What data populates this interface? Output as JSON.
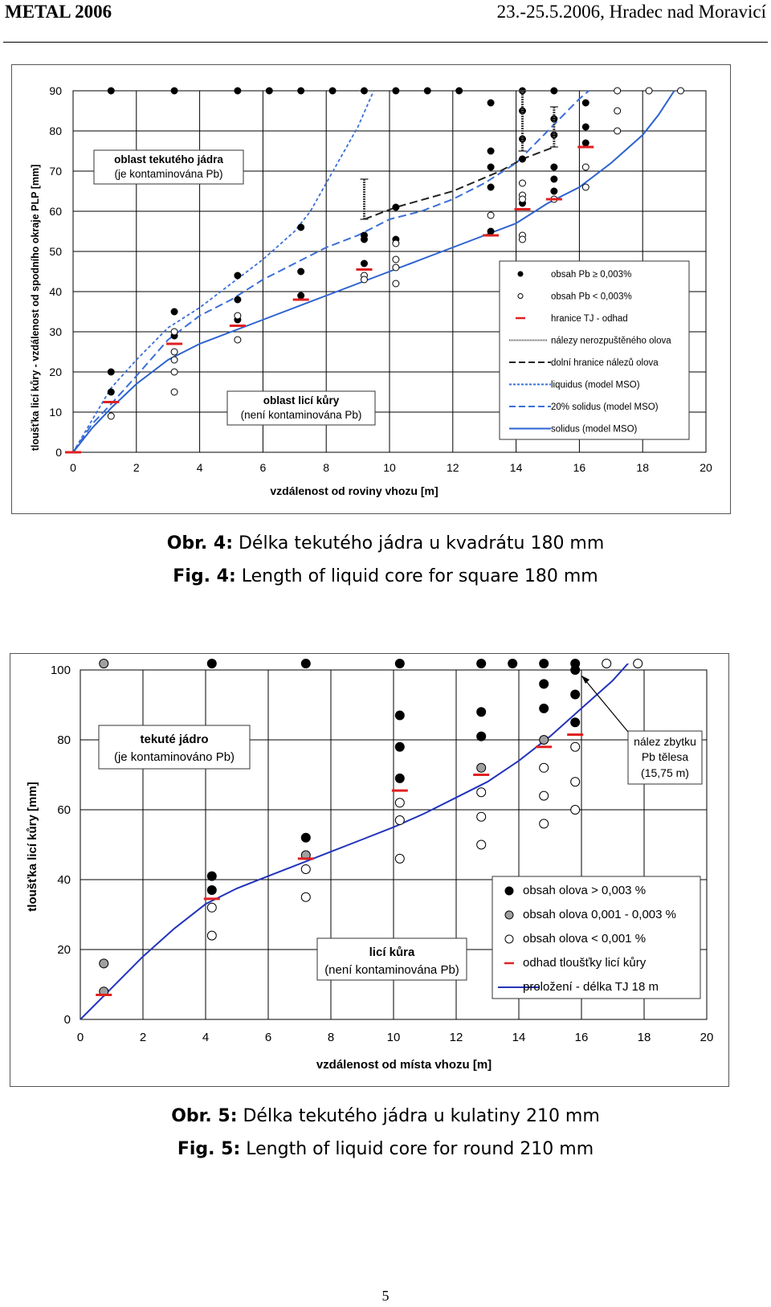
{
  "header": {
    "conference": "METAL 2006",
    "dates_place": "23.-25.5.2006, Hradec nad Moravicí"
  },
  "figure4": {
    "caption_cz_label": "Obr. 4:",
    "caption_cz_text": " Délka tekutého jádra u kvadrátu 180 mm",
    "caption_en_label": "Fig. 4:",
    "caption_en_text": " Length of liquid core for square 180 mm",
    "box_liquid_line1": "oblast tekutého jádra",
    "box_liquid_line2": "(je kontaminována Pb)",
    "box_shell_line1": "oblast licí kůry",
    "box_shell_line2": "(není kontaminována Pb)",
    "chart_data": {
      "type": "scatter",
      "xlabel": "vzdálenost od roviny vhozu [m]",
      "ylabel": "tloušťka licí kůry - vzdálenost od spodního okraje PLP  [mm]",
      "xlim": [
        0,
        20
      ],
      "ylim": [
        0,
        90
      ],
      "x_ticks": [
        "0",
        "2",
        "4",
        "6",
        "8",
        "10",
        "12",
        "14",
        "16",
        "18",
        "20"
      ],
      "y_ticks": [
        "0",
        "10",
        "20",
        "30",
        "40",
        "50",
        "60",
        "70",
        "80",
        "90"
      ],
      "grid": true,
      "legend_position": "right",
      "series": [
        {
          "name": "obsah Pb ≥ 0,003%",
          "color": "#000000",
          "marker": "filled",
          "points": [
            [
              1.2,
              90
            ],
            [
              3.2,
              90
            ],
            [
              5.2,
              90
            ],
            [
              6.2,
              90
            ],
            [
              7.2,
              90
            ],
            [
              8.2,
              90
            ],
            [
              9.2,
              90
            ],
            [
              10.2,
              90
            ],
            [
              11.2,
              90
            ],
            [
              12.2,
              90
            ],
            [
              14.2,
              90
            ],
            [
              15.2,
              90
            ],
            [
              1.2,
              20
            ],
            [
              1.2,
              15
            ],
            [
              3.2,
              35
            ],
            [
              3.2,
              29
            ],
            [
              5.2,
              44
            ],
            [
              5.2,
              38
            ],
            [
              5.2,
              33
            ],
            [
              7.2,
              56
            ],
            [
              7.2,
              45
            ],
            [
              7.2,
              39
            ],
            [
              9.2,
              54
            ],
            [
              9.2,
              53
            ],
            [
              9.2,
              47
            ],
            [
              10.2,
              61
            ],
            [
              10.2,
              53
            ],
            [
              13.2,
              87
            ],
            [
              13.2,
              75
            ],
            [
              13.2,
              71
            ],
            [
              13.2,
              66
            ],
            [
              13.2,
              55
            ],
            [
              14.2,
              85
            ],
            [
              14.2,
              78
            ],
            [
              14.2,
              73
            ],
            [
              14.2,
              62
            ],
            [
              15.2,
              83
            ],
            [
              15.2,
              79
            ],
            [
              15.2,
              71
            ],
            [
              15.2,
              68
            ],
            [
              15.2,
              65
            ],
            [
              16.2,
              87
            ],
            [
              16.2,
              81
            ],
            [
              16.2,
              77
            ]
          ]
        },
        {
          "name": "obsah Pb < 0,003%",
          "color": "#000000",
          "marker": "open",
          "points": [
            [
              1.2,
              9
            ],
            [
              3.2,
              30
            ],
            [
              3.2,
              25
            ],
            [
              3.2,
              23
            ],
            [
              3.2,
              20
            ],
            [
              3.2,
              15
            ],
            [
              5.2,
              34
            ],
            [
              5.2,
              28
            ],
            [
              9.2,
              44
            ],
            [
              9.2,
              43
            ],
            [
              10.2,
              52
            ],
            [
              10.2,
              48
            ],
            [
              10.2,
              46
            ],
            [
              10.2,
              42
            ],
            [
              13.2,
              59
            ],
            [
              14.2,
              67
            ],
            [
              14.2,
              64
            ],
            [
              14.2,
              63
            ],
            [
              14.2,
              54
            ],
            [
              14.2,
              53
            ],
            [
              15.2,
              63
            ],
            [
              16.2,
              71
            ],
            [
              16.2,
              66
            ],
            [
              17.2,
              90
            ],
            [
              17.2,
              85
            ],
            [
              17.2,
              80
            ],
            [
              18.2,
              90
            ],
            [
              19.2,
              90
            ]
          ]
        },
        {
          "name": "hranice TJ - odhad",
          "color": "#e02020",
          "marker": "dash",
          "points": [
            [
              0,
              0
            ],
            [
              1.2,
              12.5
            ],
            [
              3.2,
              27
            ],
            [
              5.2,
              31.5
            ],
            [
              7.2,
              38
            ],
            [
              9.2,
              45.5
            ],
            [
              13.2,
              54
            ],
            [
              14.2,
              60.5
            ],
            [
              15.2,
              63
            ],
            [
              16.2,
              76
            ]
          ]
        },
        {
          "name": "nálezy nerozpuštěného olova",
          "color": "#444444",
          "marker": "errorbar",
          "segments": [
            [
              9.2,
              58,
              68
            ],
            [
              14.2,
              75,
              90
            ],
            [
              15.2,
              76,
              86
            ]
          ]
        },
        {
          "name": "dolní  hranice nálezů olova",
          "color": "#222222",
          "style": "dashed",
          "points": [
            [
              9.2,
              58
            ],
            [
              10.2,
              61
            ],
            [
              12,
              65
            ],
            [
              13.5,
              70
            ],
            [
              14.2,
              73
            ],
            [
              15.2,
              76
            ]
          ]
        },
        {
          "name": "liquidus  (model MSO)",
          "color": "#3a6fd8",
          "style": "dotted",
          "points": [
            [
              0,
              0
            ],
            [
              0.6,
              8
            ],
            [
              1.2,
              16
            ],
            [
              2,
              23
            ],
            [
              3,
              31
            ],
            [
              4,
              36
            ],
            [
              5,
              42
            ],
            [
              6,
              48
            ],
            [
              7,
              55
            ],
            [
              7.5,
              60
            ],
            [
              8,
              67
            ],
            [
              8.5,
              74
            ],
            [
              9,
              81
            ],
            [
              9.5,
              90
            ]
          ]
        },
        {
          "name": "20% solidus  (model MSO)",
          "color": "#3a6fd8",
          "style": "dashed",
          "points": [
            [
              0,
              0
            ],
            [
              0.6,
              7
            ],
            [
              1.2,
              12
            ],
            [
              2,
              19
            ],
            [
              3,
              28
            ],
            [
              4,
              34
            ],
            [
              5,
              38
            ],
            [
              6,
              43
            ],
            [
              7,
              47
            ],
            [
              8,
              51
            ],
            [
              9,
              54
            ],
            [
              10,
              58
            ],
            [
              11,
              60
            ],
            [
              12,
              63
            ],
            [
              13,
              67
            ],
            [
              14,
              72
            ],
            [
              15,
              80
            ],
            [
              15.5,
              84
            ],
            [
              16,
              88
            ],
            [
              16.3,
              90
            ]
          ]
        },
        {
          "name": "solidus  (model MSO)",
          "color": "#2c62d0",
          "style": "solid",
          "points": [
            [
              0,
              0
            ],
            [
              0.6,
              6
            ],
            [
              1.2,
              11
            ],
            [
              2,
              17
            ],
            [
              3,
              23
            ],
            [
              4,
              27
            ],
            [
              5,
              30
            ],
            [
              6,
              33
            ],
            [
              7,
              36
            ],
            [
              8,
              39
            ],
            [
              9,
              42
            ],
            [
              10,
              45
            ],
            [
              11,
              48
            ],
            [
              12,
              51
            ],
            [
              13,
              54
            ],
            [
              14,
              57
            ],
            [
              15,
              62
            ],
            [
              16,
              66
            ],
            [
              17,
              72
            ],
            [
              18,
              79
            ],
            [
              18.5,
              84
            ],
            [
              19,
              90
            ]
          ]
        }
      ]
    }
  },
  "figure5": {
    "caption_cz_label": "Obr. 5:",
    "caption_cz_text": " Délka tekutého jádra u kulatiny 210 mm",
    "caption_en_label": "Fig. 5:",
    "caption_en_text": " Length of liquid core for round 210 mm",
    "box_liquid_line1": "tekuté jádro",
    "box_liquid_line2": "(je kontaminováno Pb)",
    "box_shell_line1": "licí kůra",
    "box_shell_line2": "(není kontaminována Pb)",
    "note_line1": "nález zbytku",
    "note_line2": "Pb tělesa",
    "note_line3": "(15,75 m)",
    "chart_data": {
      "type": "scatter",
      "xlabel": "vzdálenost od místa vhozu [m]",
      "ylabel": "tloušťka licí kůry  [mm]",
      "xlim": [
        0,
        20
      ],
      "ylim": [
        0,
        100
      ],
      "x_ticks": [
        "0",
        "2",
        "4",
        "6",
        "8",
        "10",
        "12",
        "14",
        "16",
        "18",
        "20"
      ],
      "y_ticks": [
        "0",
        "20",
        "40",
        "60",
        "80",
        "100"
      ],
      "grid": true,
      "legend_position": "bottom-right",
      "series": [
        {
          "name": "obsah olova > 0,003 %",
          "color": "#000000",
          "marker": "filled",
          "points": [
            [
              4.2,
              104
            ],
            [
              7.2,
              104
            ],
            [
              10.2,
              104
            ],
            [
              12.8,
              104
            ],
            [
              13.8,
              104
            ],
            [
              14.8,
              104
            ],
            [
              15.8,
              104
            ],
            [
              4.2,
              41
            ],
            [
              4.2,
              37
            ],
            [
              7.2,
              52
            ],
            [
              10.2,
              87
            ],
            [
              10.2,
              78
            ],
            [
              10.2,
              69
            ],
            [
              12.8,
              88
            ],
            [
              12.8,
              81
            ],
            [
              14.8,
              96
            ],
            [
              14.8,
              89
            ],
            [
              15.8,
              100
            ],
            [
              15.8,
              93
            ],
            [
              15.8,
              85
            ]
          ]
        },
        {
          "name": "obsah olova 0,001 - 0,003 %",
          "color": "#999999",
          "marker": "gray",
          "points": [
            [
              0.75,
              104
            ],
            [
              0.75,
              16
            ],
            [
              0.75,
              8
            ],
            [
              7.2,
              47
            ],
            [
              12.8,
              72
            ],
            [
              14.8,
              80
            ]
          ]
        },
        {
          "name": "obsah olova < 0,001 %",
          "color": "#000000",
          "marker": "open",
          "points": [
            [
              16.8,
              104
            ],
            [
              17.8,
              104
            ],
            [
              4.2,
              32
            ],
            [
              4.2,
              24
            ],
            [
              7.2,
              43
            ],
            [
              7.2,
              35
            ],
            [
              10.2,
              62
            ],
            [
              10.2,
              57
            ],
            [
              10.2,
              46
            ],
            [
              12.8,
              65
            ],
            [
              12.8,
              58
            ],
            [
              12.8,
              50
            ],
            [
              14.8,
              72
            ],
            [
              14.8,
              64
            ],
            [
              14.8,
              56
            ],
            [
              15.8,
              78
            ],
            [
              15.8,
              68
            ],
            [
              15.8,
              60
            ]
          ]
        },
        {
          "name": "odhad tloušťky licí kůry",
          "color": "#e02020",
          "marker": "dash",
          "points": [
            [
              0.75,
              7
            ],
            [
              4.2,
              34.5
            ],
            [
              7.2,
              46
            ],
            [
              10.2,
              65.5
            ],
            [
              12.8,
              70
            ],
            [
              14.8,
              78
            ],
            [
              15.8,
              81.5
            ]
          ]
        },
        {
          "name": "proložení - délka TJ 18 m",
          "color": "#2233bb",
          "style": "solid",
          "points": [
            [
              0,
              0
            ],
            [
              1,
              9
            ],
            [
              2,
              18
            ],
            [
              3,
              26
            ],
            [
              4,
              33
            ],
            [
              5,
              37.5
            ],
            [
              6,
              41
            ],
            [
              7,
              44.5
            ],
            [
              8,
              48
            ],
            [
              9,
              51.5
            ],
            [
              10,
              55
            ],
            [
              11,
              59
            ],
            [
              12,
              63.5
            ],
            [
              13,
              68
            ],
            [
              14,
              74
            ],
            [
              15,
              81
            ],
            [
              16,
              89
            ],
            [
              17,
              97
            ],
            [
              17.5,
              102
            ],
            [
              18,
              107
            ]
          ]
        }
      ]
    }
  },
  "page_number": "5"
}
